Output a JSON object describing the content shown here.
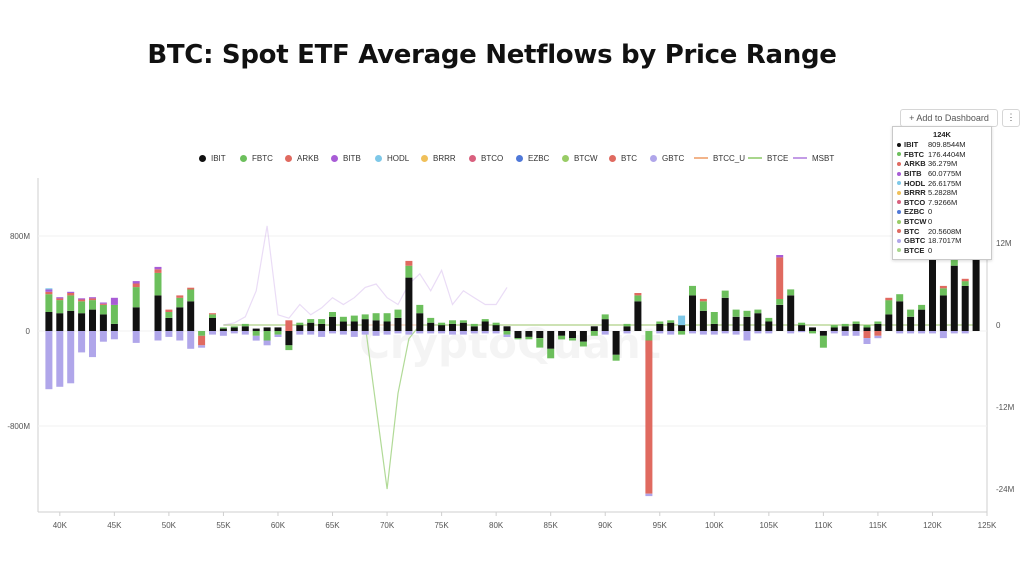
{
  "title": "BTC: Spot ETF Average Netflows by Price Range",
  "toolbar": {
    "add_label": "+ Add to Dashboard",
    "menu_label": "⋮"
  },
  "watermark": "CryptoQuant",
  "colors": {
    "IBIT": "#111111",
    "FBTC": "#6cbf5c",
    "ARKB": "#e06a60",
    "BITB": "#a85cd6",
    "HODL": "#7ec8e8",
    "BRRR": "#f0c05a",
    "BTCO": "#d9607e",
    "EZBC": "#4f78d8",
    "BTCW": "#99cc66",
    "BTC": "#e06a60",
    "GBTC": "#b0a6ea",
    "BTCC_U": "#f2b48a",
    "BTCE": "#a8d68c",
    "MSBT": "#c39ce6"
  },
  "tooltip": {
    "title": "124K",
    "rows": [
      {
        "name": "IBIT",
        "value": "809.8544M"
      },
      {
        "name": "FBTC",
        "value": "176.4404M"
      },
      {
        "name": "ARKB",
        "value": "36.279M"
      },
      {
        "name": "BITB",
        "value": "60.0775M"
      },
      {
        "name": "HODL",
        "value": "26.6175M"
      },
      {
        "name": "BRRR",
        "value": "5.2828M"
      },
      {
        "name": "BTCO",
        "value": "7.9266M"
      },
      {
        "name": "EZBC",
        "value": "0"
      },
      {
        "name": "BTCW",
        "value": "0"
      },
      {
        "name": "BTC",
        "value": "20.5608M"
      },
      {
        "name": "GBTC",
        "value": "18.7017M"
      },
      {
        "name": "BTCE",
        "value": "0"
      }
    ]
  },
  "chart_data": {
    "type": "bar",
    "stacked": true,
    "legend_position": "top",
    "x_ticks": [
      "40K",
      "45K",
      "50K",
      "55K",
      "60K",
      "65K",
      "70K",
      "75K",
      "80K",
      "85K",
      "90K",
      "95K",
      "100K",
      "105K",
      "110K",
      "115K",
      "120K",
      "125K"
    ],
    "y_left_ticks": [
      "800M",
      "0",
      "-800M"
    ],
    "y_right_ticks": [
      "12M",
      "0",
      "-12M",
      "-24M"
    ],
    "y_left_range_millions": [
      -1500,
      1200
    ],
    "y_right_range_millions": [
      -26,
      18
    ],
    "x_range_k": [
      38,
      125
    ],
    "bar_series": [
      "IBIT",
      "FBTC",
      "ARKB",
      "BITB",
      "HODL",
      "BRRR",
      "BTCO",
      "EZBC",
      "BTCW",
      "BTC",
      "GBTC"
    ],
    "line_series": [
      "BTCC_U",
      "BTCE",
      "MSBT"
    ],
    "bars": [
      {
        "x": 39,
        "IBIT": 160,
        "FBTC": 150,
        "ARKB": 20,
        "BITB": 20,
        "HODL": 10,
        "GBTC": -490
      },
      {
        "x": 40,
        "IBIT": 150,
        "FBTC": 110,
        "ARKB": 15,
        "BITB": 10,
        "GBTC": -470
      },
      {
        "x": 41,
        "IBIT": 170,
        "FBTC": 130,
        "ARKB": 20,
        "BITB": 10,
        "GBTC": -440
      },
      {
        "x": 42,
        "IBIT": 150,
        "FBTC": 100,
        "ARKB": 15,
        "BITB": 10,
        "GBTC": -180
      },
      {
        "x": 43,
        "IBIT": 180,
        "FBTC": 80,
        "ARKB": 15,
        "BITB": 10,
        "GBTC": -220
      },
      {
        "x": 44,
        "IBIT": 140,
        "FBTC": 80,
        "ARKB": 10,
        "BITB": 10,
        "GBTC": -90
      },
      {
        "x": 45,
        "IBIT": 60,
        "FBTC": 160,
        "BITB": 60,
        "GBTC": -70
      },
      {
        "x": 47,
        "IBIT": 200,
        "FBTC": 170,
        "ARKB": 30,
        "BITB": 20,
        "GBTC": -100
      },
      {
        "x": 49,
        "IBIT": 300,
        "FBTC": 190,
        "ARKB": 30,
        "BITB": 20,
        "GBTC": -80
      },
      {
        "x": 50,
        "IBIT": 110,
        "FBTC": 50,
        "ARKB": 20,
        "GBTC": -50
      },
      {
        "x": 51,
        "IBIT": 200,
        "FBTC": 80,
        "ARKB": 20,
        "GBTC": -80
      },
      {
        "x": 52,
        "IBIT": 250,
        "FBTC": 100,
        "ARKB": 15,
        "GBTC": -150
      },
      {
        "x": 53,
        "ARKB": -80,
        "FBTC": -40,
        "GBTC": -20
      },
      {
        "x": 54,
        "IBIT": 110,
        "FBTC": 30,
        "ARKB": 10,
        "GBTC": -30
      },
      {
        "x": 55,
        "IBIT": 20,
        "FBTC": 10,
        "GBTC": -40
      },
      {
        "x": 56,
        "IBIT": 30,
        "FBTC": 10,
        "GBTC": -20
      },
      {
        "x": 57,
        "IBIT": 40,
        "FBTC": 20,
        "GBTC": -30
      },
      {
        "x": 58,
        "IBIT": 20,
        "FBTC": -40,
        "GBTC": -40
      },
      {
        "x": 59,
        "IBIT": 30,
        "FBTC": -80,
        "GBTC": -40
      },
      {
        "x": 60,
        "IBIT": 30,
        "FBTC": -30,
        "GBTC": -20
      },
      {
        "x": 61,
        "ARKB": 90,
        "IBIT": -120,
        "FBTC": -40
      },
      {
        "x": 62,
        "IBIT": 50,
        "FBTC": 20,
        "GBTC": -30
      },
      {
        "x": 63,
        "IBIT": 70,
        "FBTC": 30,
        "GBTC": -30
      },
      {
        "x": 64,
        "IBIT": 60,
        "FBTC": 40,
        "GBTC": -50
      },
      {
        "x": 65,
        "IBIT": 120,
        "FBTC": 40,
        "GBTC": -20
      },
      {
        "x": 66,
        "IBIT": 80,
        "FBTC": 40,
        "GBTC": -30
      },
      {
        "x": 67,
        "IBIT": 80,
        "FBTC": 50,
        "GBTC": -50
      },
      {
        "x": 68,
        "IBIT": 100,
        "FBTC": 40,
        "GBTC": -30
      },
      {
        "x": 69,
        "IBIT": 90,
        "FBTC": 60,
        "GBTC": -40
      },
      {
        "x": 70,
        "IBIT": 80,
        "FBTC": 70,
        "GBTC": -30
      },
      {
        "x": 71,
        "IBIT": 110,
        "FBTC": 70,
        "GBTC": -20
      },
      {
        "x": 72,
        "IBIT": 450,
        "FBTC": 100,
        "ARKB": 40,
        "GBTC": -30
      },
      {
        "x": 73,
        "IBIT": 150,
        "FBTC": 70,
        "GBTC": -20
      },
      {
        "x": 74,
        "IBIT": 70,
        "FBTC": 40,
        "GBTC": -20
      },
      {
        "x": 75,
        "IBIT": 50,
        "FBTC": 20,
        "GBTC": -20
      },
      {
        "x": 76,
        "IBIT": 60,
        "FBTC": 30,
        "GBTC": -30
      },
      {
        "x": 77,
        "IBIT": 70,
        "FBTC": 20,
        "GBTC": -30
      },
      {
        "x": 78,
        "IBIT": 40,
        "FBTC": 20,
        "GBTC": -20
      },
      {
        "x": 79,
        "IBIT": 80,
        "FBTC": 20,
        "GBTC": -20
      },
      {
        "x": 80,
        "IBIT": 50,
        "FBTC": 20,
        "GBTC": -20
      },
      {
        "x": 81,
        "IBIT": 40,
        "FBTC": -30,
        "GBTC": -20
      },
      {
        "x": 82,
        "IBIT": -60,
        "FBTC": -10
      },
      {
        "x": 83,
        "IBIT": -50,
        "FBTC": -20
      },
      {
        "x": 84,
        "IBIT": -60,
        "FBTC": -80
      },
      {
        "x": 85,
        "IBIT": -150,
        "FBTC": -80
      },
      {
        "x": 86,
        "IBIT": -40,
        "FBTC": -30
      },
      {
        "x": 87,
        "IBIT": -60,
        "FBTC": -20
      },
      {
        "x": 88,
        "IBIT": -90,
        "FBTC": -40
      },
      {
        "x": 89,
        "IBIT": 40,
        "FBTC": -40
      },
      {
        "x": 90,
        "IBIT": 100,
        "FBTC": 40,
        "GBTC": -30
      },
      {
        "x": 91,
        "IBIT": -200,
        "FBTC": -50
      },
      {
        "x": 92,
        "IBIT": 40,
        "FBTC": 20,
        "GBTC": -20
      },
      {
        "x": 93,
        "IBIT": 250,
        "FBTC": 50,
        "ARKB": 20
      },
      {
        "x": 94,
        "ARKB": -1290,
        "FBTC": -80,
        "GBTC": -20
      },
      {
        "x": 95,
        "IBIT": 60,
        "FBTC": 20,
        "GBTC": -20
      },
      {
        "x": 96,
        "IBIT": 70,
        "FBTC": 20,
        "GBTC": -30
      },
      {
        "x": 97,
        "IBIT": 50,
        "HODL": 80,
        "FBTC": -30
      },
      {
        "x": 98,
        "IBIT": 300,
        "FBTC": 80,
        "GBTC": -20
      },
      {
        "x": 99,
        "IBIT": 170,
        "FBTC": 80,
        "ARKB": 20,
        "GBTC": -30
      },
      {
        "x": 100,
        "IBIT": 60,
        "FBTC": 100,
        "GBTC": -30
      },
      {
        "x": 101,
        "IBIT": 280,
        "FBTC": 60,
        "GBTC": -20
      },
      {
        "x": 102,
        "IBIT": 120,
        "FBTC": 60,
        "GBTC": -30
      },
      {
        "x": 103,
        "IBIT": 120,
        "FBTC": 50,
        "GBTC": -80
      },
      {
        "x": 104,
        "IBIT": 150,
        "FBTC": 30,
        "GBTC": -20
      },
      {
        "x": 105,
        "IBIT": 80,
        "FBTC": 30,
        "GBTC": -20
      },
      {
        "x": 106,
        "IBIT": 220,
        "FBTC": 50,
        "ARKB": 350,
        "BITB": 20
      },
      {
        "x": 107,
        "IBIT": 300,
        "FBTC": 50,
        "GBTC": -20
      },
      {
        "x": 108,
        "IBIT": 50,
        "FBTC": 20,
        "GBTC": -10
      },
      {
        "x": 109,
        "IBIT": 30,
        "FBTC": -20
      },
      {
        "x": 110,
        "IBIT": -40,
        "FBTC": -100
      },
      {
        "x": 111,
        "IBIT": 30,
        "FBTC": 20,
        "GBTC": -20
      },
      {
        "x": 112,
        "IBIT": 40,
        "FBTC": 20,
        "GBTC": -40
      },
      {
        "x": 113,
        "IBIT": 60,
        "FBTC": 20,
        "GBTC": -40
      },
      {
        "x": 114,
        "IBIT": 30,
        "FBTC": 20,
        "ARKB": -60,
        "GBTC": -50
      },
      {
        "x": 115,
        "IBIT": 60,
        "FBTC": 20,
        "ARKB": -40,
        "GBTC": -20
      },
      {
        "x": 116,
        "IBIT": 140,
        "FBTC": 120,
        "ARKB": 20
      },
      {
        "x": 117,
        "IBIT": 250,
        "FBTC": 60,
        "GBTC": -20
      },
      {
        "x": 118,
        "IBIT": 120,
        "FBTC": 60,
        "GBTC": -20
      },
      {
        "x": 119,
        "IBIT": 180,
        "FBTC": 40,
        "GBTC": -20
      },
      {
        "x": 120,
        "IBIT": 600,
        "FBTC": 80,
        "GBTC": -20
      },
      {
        "x": 121,
        "IBIT": 300,
        "FBTC": 60,
        "ARKB": 20,
        "GBTC": -60
      },
      {
        "x": 122,
        "IBIT": 550,
        "FBTC": 100,
        "GBTC": -20
      },
      {
        "x": 123,
        "IBIT": 380,
        "FBTC": 40,
        "ARKB": 20,
        "GBTC": -20
      },
      {
        "x": 124,
        "IBIT": 810,
        "FBTC": 176,
        "ARKB": 36,
        "BITB": 60,
        "HODL": 27,
        "BRRR": 5,
        "BTCO": 8,
        "BTC": 21,
        "GBTC": 19
      }
    ],
    "lines": {
      "MSBT": [
        [
          55,
          0
        ],
        [
          56,
          0.3
        ],
        [
          57,
          1.2
        ],
        [
          58,
          5
        ],
        [
          59,
          14.5
        ],
        [
          60,
          1.5
        ],
        [
          61,
          1
        ],
        [
          62,
          3
        ],
        [
          63,
          1.5
        ],
        [
          64,
          2.5
        ],
        [
          65,
          4
        ],
        [
          66,
          3
        ],
        [
          67,
          4
        ],
        [
          68,
          5.5
        ],
        [
          69,
          6
        ],
        [
          70,
          4
        ],
        [
          71,
          3
        ],
        [
          72,
          6
        ],
        [
          73,
          7.5
        ],
        [
          74,
          5
        ],
        [
          75,
          8
        ],
        [
          76,
          3
        ],
        [
          77,
          5
        ],
        [
          78,
          4
        ],
        [
          79,
          3
        ],
        [
          80,
          3
        ],
        [
          81,
          5.5
        ]
      ],
      "BTCE": [
        [
          55,
          0
        ],
        [
          60,
          0
        ],
        [
          65,
          0
        ],
        [
          68,
          0
        ],
        [
          70,
          -24
        ],
        [
          71,
          -10
        ],
        [
          72,
          -2
        ],
        [
          73,
          0
        ],
        [
          80,
          0
        ],
        [
          85,
          0
        ],
        [
          90,
          0
        ],
        [
          95,
          0
        ],
        [
          100,
          0
        ],
        [
          110,
          0
        ],
        [
          120,
          0
        ],
        [
          124,
          0
        ]
      ],
      "BTCC_U": [
        [
          55,
          0
        ],
        [
          70,
          0
        ],
        [
          90,
          0
        ],
        [
          110,
          0
        ],
        [
          124,
          0
        ]
      ]
    }
  }
}
